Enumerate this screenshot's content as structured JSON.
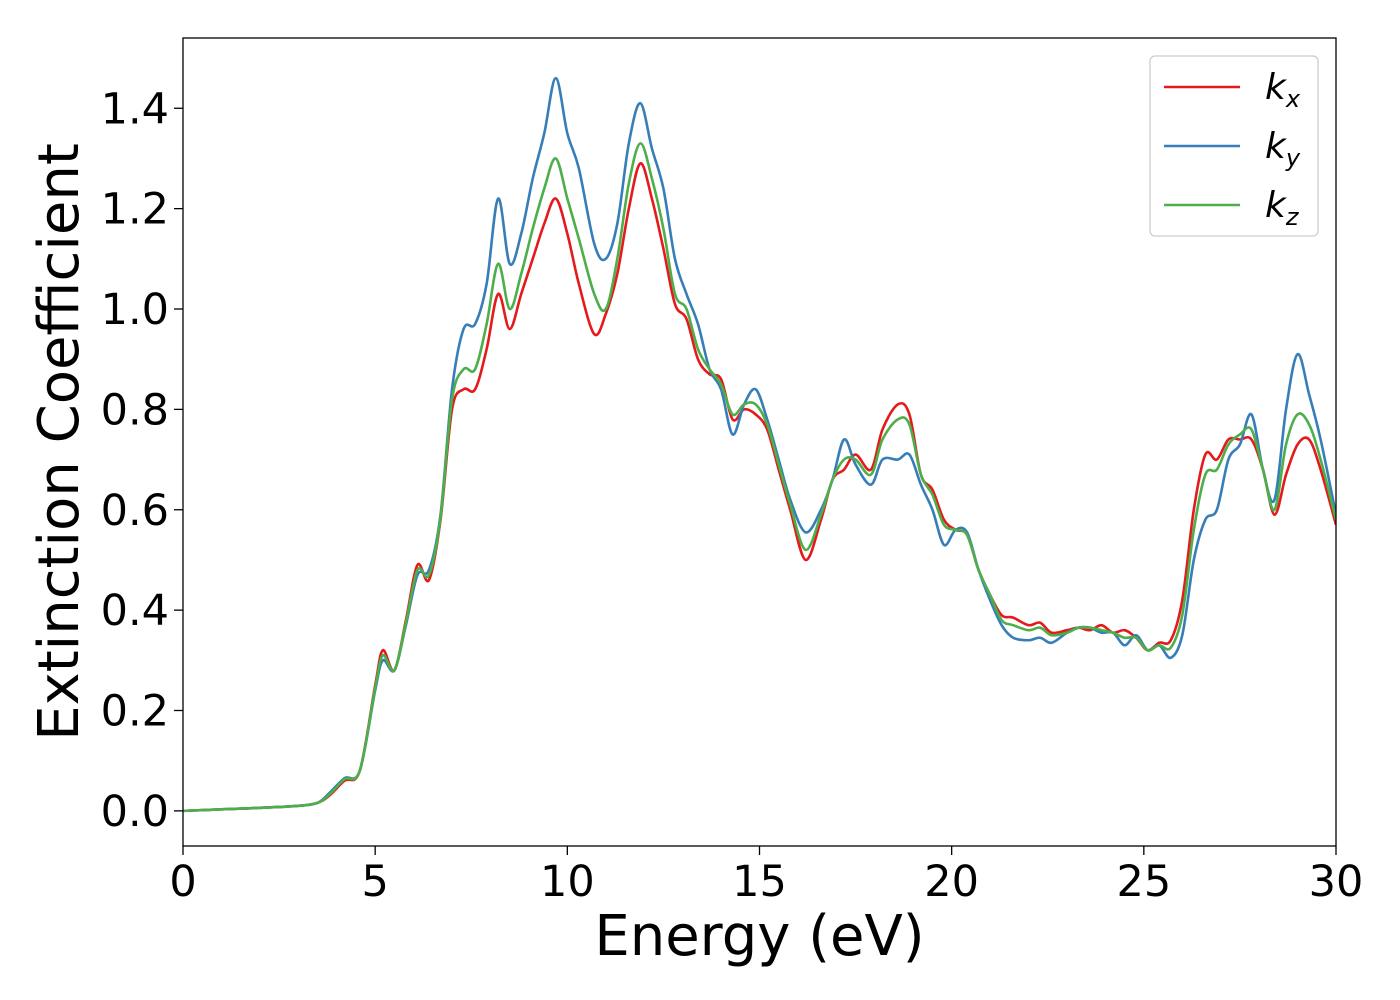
{
  "chart_data": {
    "type": "line",
    "title": "",
    "xlabel": "Energy (eV)",
    "ylabel": "Extinction Coefficient",
    "xlim": [
      0,
      30
    ],
    "ylim": [
      -0.07,
      1.54
    ],
    "xticks": [
      0,
      5,
      10,
      15,
      20,
      25,
      30
    ],
    "xtick_labels": [
      "0",
      "5",
      "10",
      "15",
      "20",
      "25",
      "30"
    ],
    "yticks": [
      0.0,
      0.2,
      0.4,
      0.6,
      0.8,
      1.0,
      1.2,
      1.4
    ],
    "ytick_labels": [
      "0.0",
      "0.2",
      "0.4",
      "0.6",
      "0.8",
      "1.0",
      "1.2",
      "1.4"
    ],
    "grid": false,
    "legend_position": "top-right",
    "series": [
      {
        "name": "k_x",
        "symbol": "k",
        "subscript": "x",
        "color": "#e41a1c",
        "x": [
          0,
          1,
          2,
          3,
          3.5,
          3.8,
          4.2,
          4.6,
          5.0,
          5.2,
          5.5,
          5.8,
          6.1,
          6.4,
          6.7,
          7.0,
          7.3,
          7.6,
          7.9,
          8.2,
          8.5,
          8.8,
          9.1,
          9.4,
          9.7,
          10.0,
          10.3,
          10.7,
          11.0,
          11.3,
          11.6,
          11.9,
          12.2,
          12.5,
          12.8,
          13.1,
          13.4,
          13.7,
          14.0,
          14.3,
          14.6,
          14.9,
          15.2,
          15.5,
          15.8,
          16.2,
          16.6,
          16.9,
          17.2,
          17.5,
          17.9,
          18.2,
          18.6,
          18.9,
          19.2,
          19.5,
          19.8,
          20.1,
          20.4,
          20.7,
          21.0,
          21.3,
          21.6,
          22.0,
          22.3,
          22.6,
          23.0,
          23.3,
          23.6,
          23.9,
          24.2,
          24.5,
          24.8,
          25.1,
          25.4,
          25.7,
          26.0,
          26.3,
          26.6,
          26.9,
          27.2,
          27.5,
          27.8,
          28.1,
          28.4,
          28.7,
          29.0,
          29.3,
          29.6,
          30.0
        ],
        "y": [
          0.0,
          0.003,
          0.006,
          0.01,
          0.016,
          0.03,
          0.06,
          0.08,
          0.25,
          0.32,
          0.28,
          0.38,
          0.49,
          0.46,
          0.58,
          0.8,
          0.84,
          0.84,
          0.92,
          1.03,
          0.96,
          1.03,
          1.1,
          1.17,
          1.22,
          1.15,
          1.05,
          0.95,
          0.99,
          1.07,
          1.2,
          1.29,
          1.22,
          1.12,
          1.01,
          0.98,
          0.9,
          0.87,
          0.86,
          0.78,
          0.8,
          0.79,
          0.76,
          0.68,
          0.6,
          0.5,
          0.58,
          0.66,
          0.68,
          0.71,
          0.68,
          0.76,
          0.81,
          0.79,
          0.67,
          0.64,
          0.58,
          0.56,
          0.55,
          0.48,
          0.43,
          0.39,
          0.385,
          0.37,
          0.375,
          0.355,
          0.36,
          0.365,
          0.36,
          0.37,
          0.355,
          0.36,
          0.345,
          0.32,
          0.335,
          0.34,
          0.42,
          0.6,
          0.71,
          0.7,
          0.74,
          0.74,
          0.74,
          0.68,
          0.59,
          0.67,
          0.73,
          0.74,
          0.68,
          0.57
        ]
      },
      {
        "name": "k_y",
        "symbol": "k",
        "subscript": "y",
        "color": "#377eb8",
        "x": [
          0,
          1,
          2,
          3,
          3.5,
          3.8,
          4.2,
          4.6,
          5.0,
          5.2,
          5.5,
          5.8,
          6.1,
          6.4,
          6.7,
          7.0,
          7.3,
          7.6,
          7.9,
          8.2,
          8.5,
          8.8,
          9.1,
          9.4,
          9.7,
          10.0,
          10.3,
          10.7,
          11.0,
          11.3,
          11.6,
          11.9,
          12.2,
          12.5,
          12.8,
          13.1,
          13.4,
          13.7,
          14.0,
          14.3,
          14.6,
          14.9,
          15.2,
          15.5,
          15.8,
          16.2,
          16.6,
          16.9,
          17.2,
          17.5,
          17.9,
          18.2,
          18.6,
          18.9,
          19.2,
          19.5,
          19.8,
          20.1,
          20.4,
          20.7,
          21.0,
          21.3,
          21.6,
          22.0,
          22.3,
          22.6,
          23.0,
          23.3,
          23.6,
          23.9,
          24.2,
          24.5,
          24.8,
          25.1,
          25.4,
          25.7,
          26.0,
          26.3,
          26.6,
          26.9,
          27.2,
          27.5,
          27.8,
          28.1,
          28.4,
          28.7,
          29.0,
          29.3,
          29.6,
          30.0
        ],
        "y": [
          0.0,
          0.003,
          0.006,
          0.01,
          0.016,
          0.035,
          0.065,
          0.08,
          0.24,
          0.3,
          0.28,
          0.37,
          0.47,
          0.48,
          0.59,
          0.84,
          0.96,
          0.97,
          1.05,
          1.22,
          1.09,
          1.15,
          1.26,
          1.35,
          1.46,
          1.35,
          1.28,
          1.13,
          1.1,
          1.17,
          1.33,
          1.41,
          1.32,
          1.24,
          1.1,
          1.03,
          0.97,
          0.88,
          0.84,
          0.75,
          0.81,
          0.84,
          0.78,
          0.7,
          0.62,
          0.555,
          0.6,
          0.66,
          0.74,
          0.69,
          0.65,
          0.7,
          0.7,
          0.71,
          0.65,
          0.6,
          0.53,
          0.56,
          0.555,
          0.48,
          0.42,
          0.37,
          0.345,
          0.34,
          0.345,
          0.335,
          0.355,
          0.365,
          0.365,
          0.355,
          0.355,
          0.33,
          0.35,
          0.32,
          0.33,
          0.305,
          0.35,
          0.5,
          0.58,
          0.6,
          0.7,
          0.73,
          0.79,
          0.68,
          0.62,
          0.8,
          0.91,
          0.83,
          0.74,
          0.59
        ]
      },
      {
        "name": "k_z",
        "symbol": "k",
        "subscript": "z",
        "color": "#4daf4a",
        "x": [
          0,
          1,
          2,
          3,
          3.5,
          3.8,
          4.2,
          4.6,
          5.0,
          5.2,
          5.5,
          5.8,
          6.1,
          6.4,
          6.7,
          7.0,
          7.3,
          7.6,
          7.9,
          8.2,
          8.5,
          8.8,
          9.1,
          9.4,
          9.7,
          10.0,
          10.3,
          10.7,
          11.0,
          11.3,
          11.6,
          11.9,
          12.2,
          12.5,
          12.8,
          13.1,
          13.4,
          13.7,
          14.0,
          14.3,
          14.6,
          14.9,
          15.2,
          15.5,
          15.8,
          16.2,
          16.6,
          16.9,
          17.2,
          17.5,
          17.9,
          18.2,
          18.6,
          18.9,
          19.2,
          19.5,
          19.8,
          20.1,
          20.4,
          20.7,
          21.0,
          21.3,
          21.6,
          22.0,
          22.3,
          22.6,
          23.0,
          23.3,
          23.6,
          23.9,
          24.2,
          24.5,
          24.8,
          25.1,
          25.4,
          25.7,
          26.0,
          26.3,
          26.6,
          26.9,
          27.2,
          27.5,
          27.8,
          28.1,
          28.4,
          28.7,
          29.0,
          29.3,
          29.6,
          30.0
        ],
        "y": [
          0.0,
          0.003,
          0.006,
          0.01,
          0.016,
          0.032,
          0.063,
          0.08,
          0.245,
          0.31,
          0.28,
          0.375,
          0.48,
          0.47,
          0.585,
          0.82,
          0.88,
          0.88,
          0.97,
          1.09,
          1.0,
          1.07,
          1.16,
          1.24,
          1.3,
          1.22,
          1.14,
          1.03,
          1.0,
          1.1,
          1.25,
          1.33,
          1.26,
          1.16,
          1.03,
          1.0,
          0.92,
          0.88,
          0.85,
          0.79,
          0.81,
          0.81,
          0.77,
          0.69,
          0.61,
          0.52,
          0.59,
          0.66,
          0.7,
          0.7,
          0.67,
          0.74,
          0.78,
          0.77,
          0.67,
          0.63,
          0.57,
          0.56,
          0.55,
          0.48,
          0.43,
          0.38,
          0.37,
          0.36,
          0.365,
          0.35,
          0.355,
          0.365,
          0.365,
          0.36,
          0.355,
          0.345,
          0.345,
          0.32,
          0.33,
          0.325,
          0.39,
          0.56,
          0.67,
          0.68,
          0.73,
          0.75,
          0.76,
          0.68,
          0.6,
          0.73,
          0.79,
          0.77,
          0.7,
          0.58
        ]
      }
    ]
  }
}
